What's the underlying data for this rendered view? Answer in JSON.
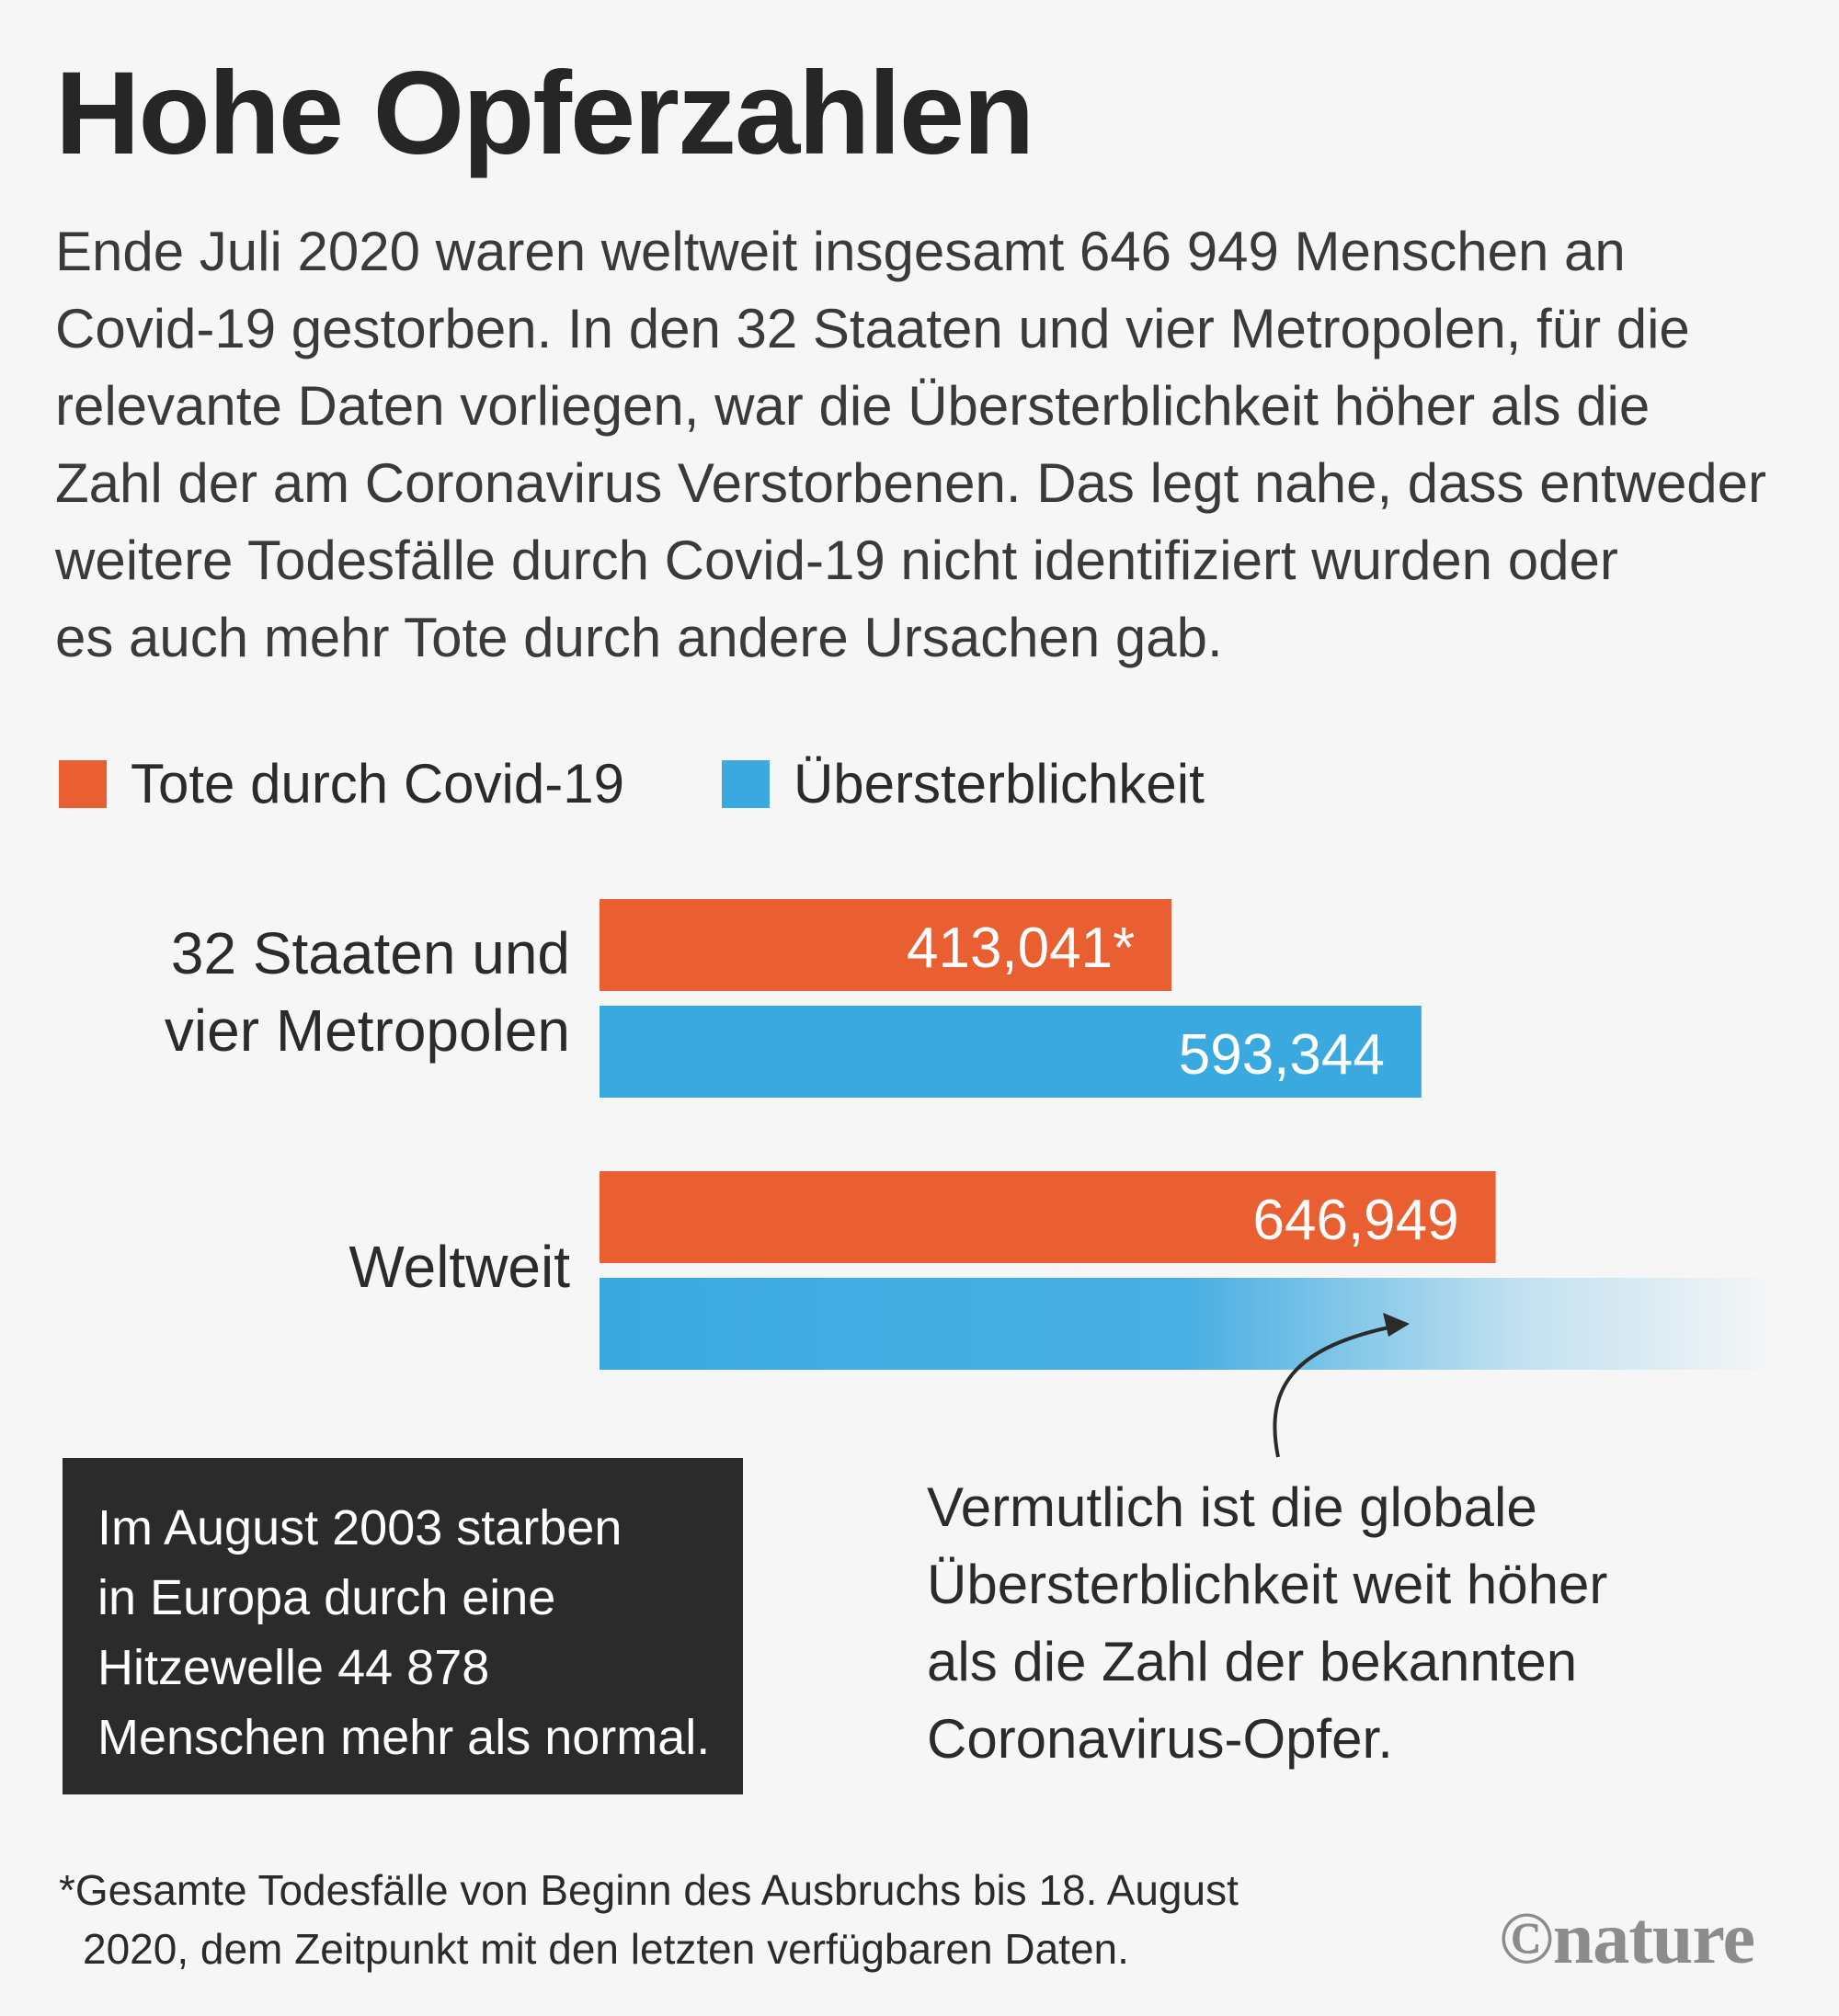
{
  "title": "Hohe Opferzahlen",
  "intro_lines": [
    "Ende Juli 2020 waren weltweit insgesamt 646 949 Menschen an",
    "Covid-19 gestorben. In den 32 Staaten und vier Metropolen, für die",
    "relevante Daten vorliegen, war die Übersterblichkeit höher als die",
    "Zahl der am Coronavirus Verstorbenen. Das legt nahe, dass entweder",
    "weitere Todesfälle durch Covid-19 nicht identifiziert wurden oder",
    "es auch mehr Tote durch andere Ursachen gab."
  ],
  "colors": {
    "covid": "#e95f32",
    "excess": "#3aa9e0",
    "background": "#f6f6f6",
    "note_box": "#2b2b2b"
  },
  "chart_data": {
    "type": "bar",
    "orientation": "horizontal",
    "legend_position": "top-left",
    "categories": [
      {
        "lines": [
          "32 Staaten und",
          "vier Metropolen"
        ]
      },
      {
        "lines": [
          "Weltweit"
        ]
      }
    ],
    "series": [
      {
        "name": "Tote durch Covid-19",
        "color": "#e95f32",
        "values": [
          413041,
          646949
        ],
        "labels": [
          "413,041*",
          "646,949"
        ]
      },
      {
        "name": "Übersterblichkeit",
        "color": "#3aa9e0",
        "values": [
          593344,
          null
        ],
        "labels": [
          "593,344",
          ""
        ],
        "fade": [
          false,
          true
        ]
      }
    ],
    "grid": false,
    "axis_shown": false
  },
  "note": {
    "lines": [
      "Im August 2003 starben",
      "in Europa durch eine",
      "Hitzewelle 44 878",
      "Menschen mehr als normal."
    ]
  },
  "annotation": {
    "lines": [
      "Vermutlich ist die globale",
      "Übersterblichkeit weit höher",
      "als die Zahl der bekannten",
      "Coronavirus-Opfer."
    ]
  },
  "footnote": {
    "lines": [
      "*Gesamte Todesfälle von Beginn des Ausbruchs bis 18. August",
      "2020, dem Zeitpunkt mit den letzten verfügbaren Daten."
    ]
  },
  "logo": "©nature"
}
